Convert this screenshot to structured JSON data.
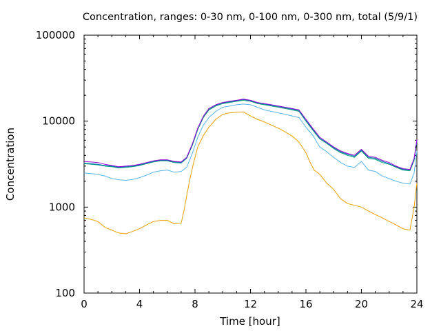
{
  "chart_data": {
    "type": "line",
    "title": "Concentration, ranges: 0-30 nm, 0-100 nm, 0-300 nm, total (5/9/1)",
    "xlabel": "Time [hour]",
    "ylabel": "Concentration",
    "xlim": [
      0,
      24
    ],
    "ylim": [
      100,
      100000
    ],
    "yscale": "log",
    "grid": false,
    "legend": "none",
    "xticks": [
      "0",
      "4",
      "8",
      "12",
      "16",
      "20",
      "24"
    ],
    "yticks": [
      "100",
      "1000",
      "10000",
      "100000"
    ],
    "series": [
      {
        "color": "#e69f00",
        "points": [
          [
            0,
            750
          ],
          [
            0.5,
            720
          ],
          [
            1,
            680
          ],
          [
            1.5,
            580
          ],
          [
            2,
            540
          ],
          [
            2.5,
            500
          ],
          [
            3,
            490
          ],
          [
            3.5,
            520
          ],
          [
            4,
            560
          ],
          [
            4.5,
            620
          ],
          [
            5,
            680
          ],
          [
            5.5,
            700
          ],
          [
            6,
            700
          ],
          [
            6.5,
            640
          ],
          [
            7,
            650
          ],
          [
            7.2,
            900
          ],
          [
            7.6,
            2000
          ],
          [
            7.9,
            3300
          ],
          [
            8.2,
            5000
          ],
          [
            8.6,
            6800
          ],
          [
            9,
            8500
          ],
          [
            9.5,
            10500
          ],
          [
            10,
            12000
          ],
          [
            10.5,
            12500
          ],
          [
            11,
            12700
          ],
          [
            11.5,
            12800
          ],
          [
            12,
            11500
          ],
          [
            12.5,
            10500
          ],
          [
            13,
            9800
          ],
          [
            13.5,
            9000
          ],
          [
            14,
            8300
          ],
          [
            14.5,
            7500
          ],
          [
            15,
            6700
          ],
          [
            15.5,
            5700
          ],
          [
            16,
            4300
          ],
          [
            16.3,
            3300
          ],
          [
            16.6,
            2700
          ],
          [
            17,
            2400
          ],
          [
            17.5,
            1900
          ],
          [
            18,
            1600
          ],
          [
            18.5,
            1250
          ],
          [
            19,
            1100
          ],
          [
            19.5,
            1050
          ],
          [
            20,
            1000
          ],
          [
            20.5,
            900
          ],
          [
            21,
            820
          ],
          [
            21.5,
            750
          ],
          [
            22,
            680
          ],
          [
            22.5,
            620
          ],
          [
            23,
            560
          ],
          [
            23.5,
            540
          ],
          [
            23.8,
            1000
          ],
          [
            24,
            1900
          ]
        ]
      },
      {
        "color": "#56b4e9",
        "points": [
          [
            0,
            2500
          ],
          [
            0.5,
            2450
          ],
          [
            1,
            2400
          ],
          [
            1.5,
            2300
          ],
          [
            2,
            2150
          ],
          [
            2.5,
            2080
          ],
          [
            3,
            2050
          ],
          [
            3.5,
            2100
          ],
          [
            4,
            2200
          ],
          [
            4.5,
            2350
          ],
          [
            5,
            2550
          ],
          [
            5.5,
            2650
          ],
          [
            6,
            2700
          ],
          [
            6.5,
            2550
          ],
          [
            7,
            2600
          ],
          [
            7.4,
            2900
          ],
          [
            7.8,
            4200
          ],
          [
            8.2,
            6500
          ],
          [
            8.6,
            9000
          ],
          [
            9,
            11000
          ],
          [
            9.5,
            13000
          ],
          [
            10,
            14500
          ],
          [
            10.5,
            15000
          ],
          [
            11,
            15500
          ],
          [
            11.5,
            15800
          ],
          [
            12,
            15500
          ],
          [
            12.5,
            14500
          ],
          [
            13,
            13500
          ],
          [
            13.5,
            13000
          ],
          [
            14,
            12500
          ],
          [
            14.5,
            12000
          ],
          [
            15,
            11500
          ],
          [
            15.5,
            11000
          ],
          [
            16,
            8500
          ],
          [
            16.5,
            6800
          ],
          [
            17,
            5000
          ],
          [
            17.5,
            4400
          ],
          [
            18,
            3800
          ],
          [
            18.5,
            3300
          ],
          [
            19,
            3000
          ],
          [
            19.5,
            2900
          ],
          [
            20,
            3400
          ],
          [
            20.5,
            2700
          ],
          [
            21,
            2600
          ],
          [
            21.5,
            2300
          ],
          [
            22,
            2150
          ],
          [
            22.5,
            2000
          ],
          [
            23,
            1900
          ],
          [
            23.5,
            1850
          ],
          [
            23.8,
            2500
          ],
          [
            24,
            4500
          ]
        ]
      },
      {
        "color": "#009e73",
        "points": [
          [
            0,
            3200
          ],
          [
            0.5,
            3150
          ],
          [
            1,
            3100
          ],
          [
            1.5,
            3000
          ],
          [
            2,
            2950
          ],
          [
            2.5,
            2850
          ],
          [
            3,
            2900
          ],
          [
            3.5,
            2950
          ],
          [
            4,
            3050
          ],
          [
            4.5,
            3200
          ],
          [
            5,
            3350
          ],
          [
            5.5,
            3450
          ],
          [
            6,
            3450
          ],
          [
            6.5,
            3300
          ],
          [
            7,
            3250
          ],
          [
            7.4,
            3700
          ],
          [
            7.8,
            5200
          ],
          [
            8.2,
            8000
          ],
          [
            8.6,
            11000
          ],
          [
            9,
            13500
          ],
          [
            9.5,
            15000
          ],
          [
            10,
            16000
          ],
          [
            10.5,
            16500
          ],
          [
            11,
            17000
          ],
          [
            11.5,
            17500
          ],
          [
            12,
            17000
          ],
          [
            12.5,
            16000
          ],
          [
            13,
            15500
          ],
          [
            13.5,
            15000
          ],
          [
            14,
            14500
          ],
          [
            14.5,
            14000
          ],
          [
            15,
            13500
          ],
          [
            15.5,
            13000
          ],
          [
            16,
            10000
          ],
          [
            16.5,
            7800
          ],
          [
            17,
            6200
          ],
          [
            17.5,
            5500
          ],
          [
            18,
            4800
          ],
          [
            18.5,
            4300
          ],
          [
            19,
            4000
          ],
          [
            19.5,
            3800
          ],
          [
            20,
            4500
          ],
          [
            20.5,
            3700
          ],
          [
            21,
            3600
          ],
          [
            21.5,
            3300
          ],
          [
            22,
            3150
          ],
          [
            22.5,
            2900
          ],
          [
            23,
            2700
          ],
          [
            23.5,
            2650
          ],
          [
            23.8,
            3500
          ],
          [
            24,
            5800
          ]
        ]
      },
      {
        "color": "#0072b2",
        "points": [
          [
            0,
            3250
          ],
          [
            0.5,
            3200
          ],
          [
            1,
            3150
          ],
          [
            1.5,
            3050
          ],
          [
            2,
            3000
          ],
          [
            2.5,
            2900
          ],
          [
            3,
            2950
          ],
          [
            3.5,
            3000
          ],
          [
            4,
            3100
          ],
          [
            4.5,
            3250
          ],
          [
            5,
            3400
          ],
          [
            5.5,
            3500
          ],
          [
            6,
            3500
          ],
          [
            6.5,
            3350
          ],
          [
            7,
            3300
          ],
          [
            7.4,
            3750
          ],
          [
            7.8,
            5300
          ],
          [
            8.2,
            8200
          ],
          [
            8.6,
            11300
          ],
          [
            9,
            13800
          ],
          [
            9.5,
            15300
          ],
          [
            10,
            16300
          ],
          [
            10.5,
            16800
          ],
          [
            11,
            17300
          ],
          [
            11.5,
            17800
          ],
          [
            12,
            17300
          ],
          [
            12.5,
            16300
          ],
          [
            13,
            15800
          ],
          [
            13.5,
            15300
          ],
          [
            14,
            14800
          ],
          [
            14.5,
            14300
          ],
          [
            15,
            13800
          ],
          [
            15.5,
            13300
          ],
          [
            16,
            10200
          ],
          [
            16.5,
            8000
          ],
          [
            17,
            6300
          ],
          [
            17.5,
            5600
          ],
          [
            18,
            4900
          ],
          [
            18.5,
            4400
          ],
          [
            19,
            4100
          ],
          [
            19.5,
            3900
          ],
          [
            20,
            4600
          ],
          [
            20.5,
            3800
          ],
          [
            21,
            3700
          ],
          [
            21.5,
            3400
          ],
          [
            22,
            3200
          ],
          [
            22.5,
            2950
          ],
          [
            23,
            2750
          ],
          [
            23.5,
            2700
          ],
          [
            23.8,
            3600
          ],
          [
            24,
            6000
          ]
        ]
      },
      {
        "color": "#9400d3",
        "points": [
          [
            0,
            3400
          ],
          [
            0.5,
            3350
          ],
          [
            1,
            3300
          ],
          [
            1.5,
            3150
          ],
          [
            2,
            3050
          ],
          [
            2.5,
            2950
          ],
          [
            3,
            3000
          ],
          [
            3.5,
            3050
          ],
          [
            4,
            3150
          ],
          [
            4.5,
            3300
          ],
          [
            5,
            3450
          ],
          [
            5.5,
            3550
          ],
          [
            6,
            3550
          ],
          [
            6.5,
            3400
          ],
          [
            7,
            3350
          ],
          [
            7.4,
            3800
          ],
          [
            7.8,
            5400
          ],
          [
            8.2,
            8300
          ],
          [
            8.6,
            11400
          ],
          [
            9,
            14000
          ],
          [
            9.5,
            15500
          ],
          [
            10,
            16500
          ],
          [
            10.5,
            17000
          ],
          [
            11,
            17500
          ],
          [
            11.5,
            18000
          ],
          [
            12,
            17500
          ],
          [
            12.5,
            16500
          ],
          [
            13,
            16000
          ],
          [
            13.5,
            15500
          ],
          [
            14,
            15000
          ],
          [
            14.5,
            14500
          ],
          [
            15,
            14000
          ],
          [
            15.5,
            13500
          ],
          [
            16,
            10500
          ],
          [
            16.5,
            8200
          ],
          [
            17,
            6500
          ],
          [
            17.5,
            5700
          ],
          [
            18,
            5000
          ],
          [
            18.5,
            4500
          ],
          [
            19,
            4200
          ],
          [
            19.5,
            4000
          ],
          [
            20,
            4700
          ],
          [
            20.5,
            3900
          ],
          [
            21,
            3800
          ],
          [
            21.5,
            3500
          ],
          [
            22,
            3300
          ],
          [
            22.5,
            3000
          ],
          [
            23,
            2800
          ],
          [
            23.5,
            2750
          ],
          [
            23.8,
            3700
          ],
          [
            24,
            6100
          ]
        ]
      }
    ]
  }
}
